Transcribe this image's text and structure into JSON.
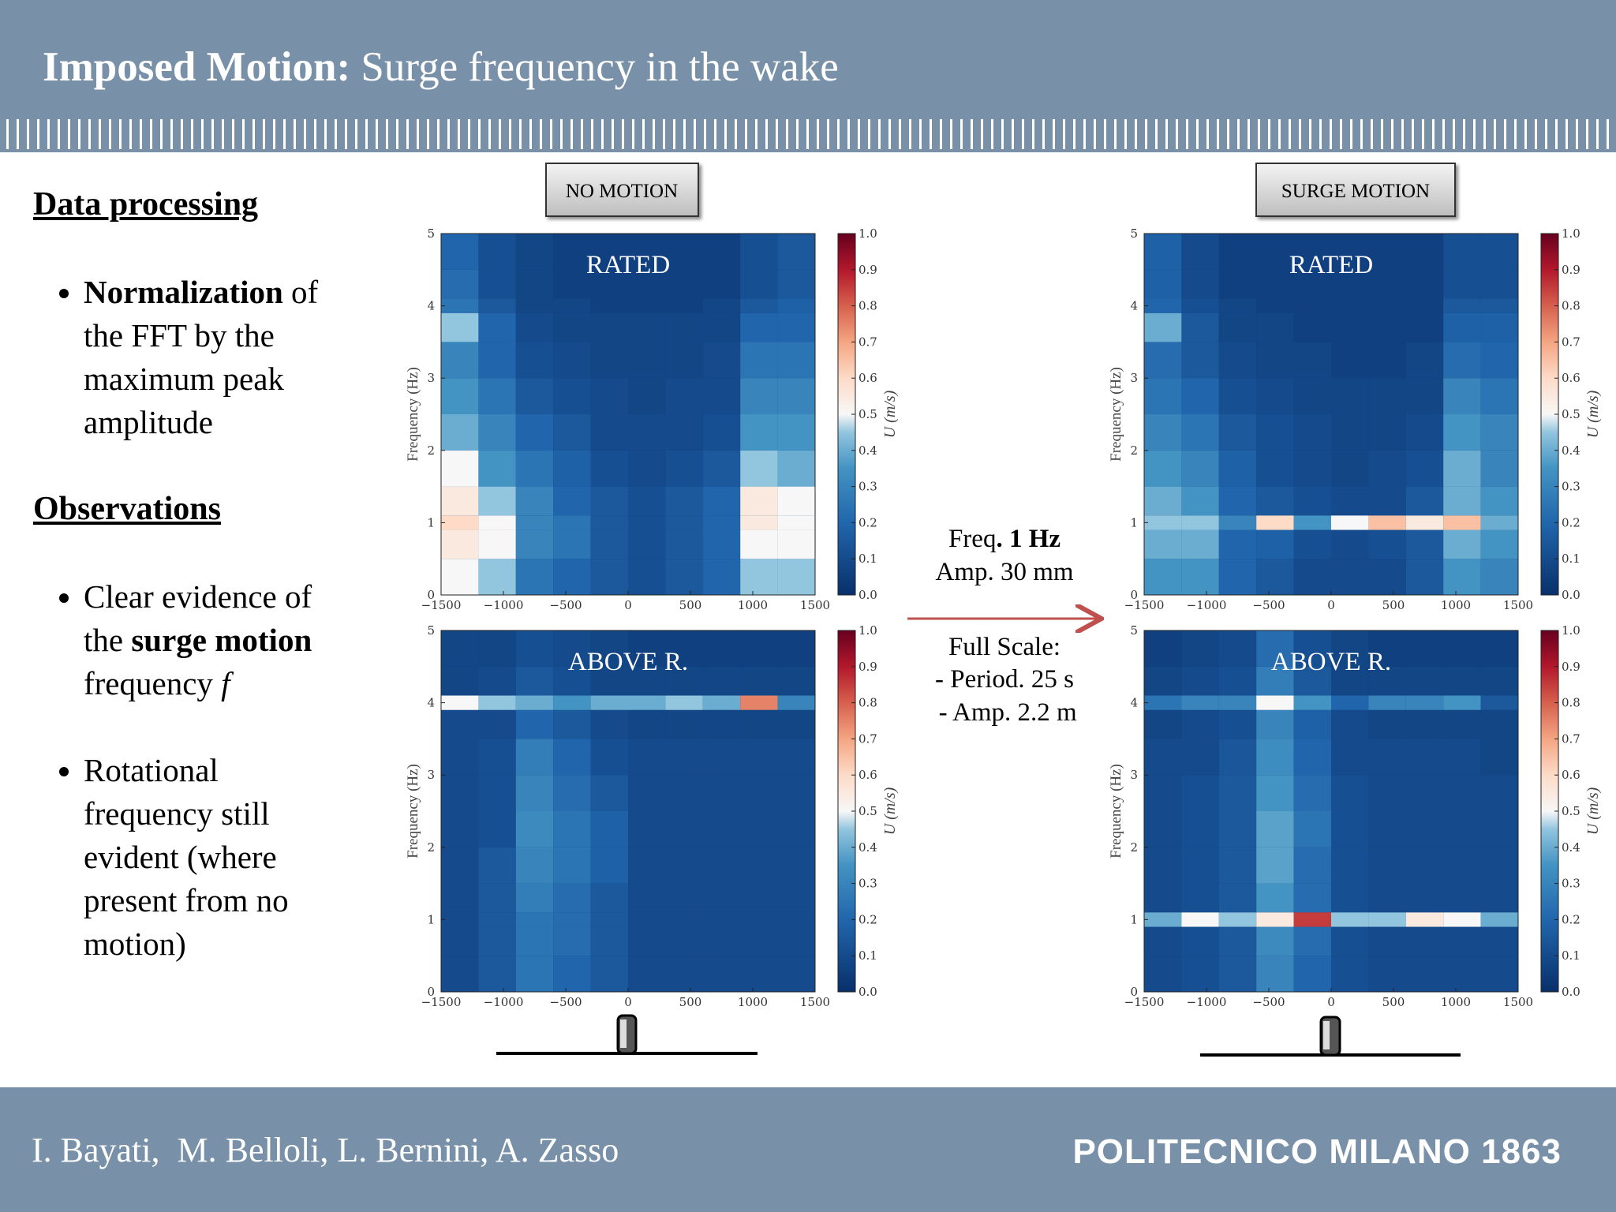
{
  "header": {
    "title": [
      {
        "text": "Imposed Motion:",
        "bold": true
      },
      {
        "text": " Surge frequency in the wake"
      }
    ]
  },
  "sidebar": [
    {
      "heading": "Data processing",
      "bullets": [
        [
          {
            "text": "Normalization",
            "bold": true
          },
          {
            "text": " of the FFT by the maximum peak amplitude"
          }
        ]
      ]
    },
    {
      "heading": "Observations",
      "bullets": [
        [
          {
            "text": "Clear evidence of the "
          },
          {
            "text": "surge motion",
            "bold": true
          },
          {
            "text": " frequency "
          },
          {
            "text": "f",
            "italic": true
          }
        ],
        [
          {
            "text": "Rotational frequency still evident (where present from no motion)"
          }
        ]
      ]
    }
  ],
  "column_labels": [
    "NO MOTION",
    "SURGE MOTION"
  ],
  "annotation": [
    [
      {
        "text": "Freq"
      },
      {
        "text": ". 1 Hz",
        "bold": true
      }
    ],
    [
      {
        "text": "Amp. 30 mm"
      }
    ],
    [
      {
        "text": "Full Scale:"
      }
    ],
    [
      {
        "text": "- Period. 25 s"
      }
    ],
    [
      {
        "text": " - Amp. 2.2 m"
      }
    ]
  ],
  "footer": {
    "authors": "I. Bayati,  M. Belloli, L. Bernini, A. Zasso",
    "logo": "POLITECNICO MILANO 1863"
  },
  "chart_data": [
    {
      "type": "heatmap",
      "title": "RATED",
      "ylabel": "Frequency (Hz)",
      "colorbar_label": "U (m/s)",
      "xlim": [
        -1500,
        1500
      ],
      "ylim": [
        0,
        5
      ],
      "clim": [
        0,
        1
      ],
      "xticks": [
        {
          "value": -1500,
          "label": "−1500"
        },
        {
          "value": -1000,
          "label": "−1000"
        },
        {
          "value": -500,
          "label": "−500"
        },
        0,
        500,
        1000,
        1500
      ],
      "yticks": [
        0,
        1,
        2,
        3,
        4,
        5
      ],
      "cticks": [
        {
          "value": 0,
          "label": "0.0"
        },
        0.1,
        0.2,
        0.3,
        0.4,
        0.5,
        0.6,
        0.7,
        0.8,
        0.9,
        {
          "value": 1,
          "label": "1.0"
        }
      ],
      "xbins": [
        -1500,
        -1200,
        -900,
        -600,
        -300,
        0,
        300,
        600,
        900,
        1200,
        1500
      ],
      "ybins": [
        0,
        0.5,
        0.9,
        1.1,
        1.5,
        2,
        2.5,
        3,
        3.5,
        3.9,
        4.1,
        4.5,
        5
      ],
      "z": [
        [
          0.5,
          0.45,
          0.25,
          0.2,
          0.15,
          0.12,
          0.15,
          0.2,
          0.45,
          0.45
        ],
        [
          0.55,
          0.5,
          0.3,
          0.25,
          0.15,
          0.12,
          0.15,
          0.2,
          0.5,
          0.5
        ],
        [
          0.6,
          0.5,
          0.3,
          0.25,
          0.15,
          0.12,
          0.15,
          0.2,
          0.55,
          0.5
        ],
        [
          0.55,
          0.45,
          0.3,
          0.2,
          0.15,
          0.12,
          0.15,
          0.2,
          0.55,
          0.5
        ],
        [
          0.5,
          0.35,
          0.25,
          0.18,
          0.12,
          0.1,
          0.12,
          0.15,
          0.45,
          0.4
        ],
        [
          0.4,
          0.3,
          0.2,
          0.15,
          0.1,
          0.1,
          0.1,
          0.12,
          0.35,
          0.35
        ],
        [
          0.35,
          0.25,
          0.15,
          0.12,
          0.1,
          0.08,
          0.1,
          0.1,
          0.3,
          0.3
        ],
        [
          0.3,
          0.2,
          0.12,
          0.1,
          0.08,
          0.08,
          0.08,
          0.1,
          0.25,
          0.25
        ],
        [
          0.45,
          0.2,
          0.1,
          0.08,
          0.08,
          0.08,
          0.08,
          0.08,
          0.2,
          0.2
        ],
        [
          0.25,
          0.15,
          0.08,
          0.08,
          0.06,
          0.06,
          0.06,
          0.08,
          0.15,
          0.18
        ],
        [
          0.22,
          0.12,
          0.08,
          0.06,
          0.06,
          0.06,
          0.06,
          0.06,
          0.12,
          0.15
        ],
        [
          0.2,
          0.12,
          0.08,
          0.06,
          0.06,
          0.06,
          0.06,
          0.06,
          0.12,
          0.15
        ]
      ]
    },
    {
      "type": "heatmap",
      "title": "ABOVE R.",
      "ylabel": "Frequency (Hz)",
      "colorbar_label": "U (m/s)",
      "xlim": [
        -1500,
        1500
      ],
      "ylim": [
        0,
        5
      ],
      "clim": [
        0,
        1
      ],
      "xticks": [
        {
          "value": -1500,
          "label": "−1500"
        },
        {
          "value": -1000,
          "label": "−1000"
        },
        {
          "value": -500,
          "label": "−500"
        },
        0,
        500,
        1000,
        1500
      ],
      "yticks": [
        0,
        1,
        2,
        3,
        4,
        5
      ],
      "cticks": [
        {
          "value": 0,
          "label": "0.0"
        },
        0.1,
        0.2,
        0.3,
        0.4,
        0.5,
        0.6,
        0.7,
        0.8,
        0.9,
        {
          "value": 1,
          "label": "1.0"
        }
      ],
      "xbins": [
        -1500,
        -1200,
        -900,
        -600,
        -300,
        0,
        300,
        600,
        900,
        1200,
        1500
      ],
      "ybins": [
        0,
        0.5,
        0.9,
        1.1,
        1.5,
        2,
        2.5,
        3,
        3.5,
        3.9,
        4.1,
        4.5,
        5
      ],
      "z": [
        [
          0.1,
          0.15,
          0.25,
          0.2,
          0.15,
          0.1,
          0.1,
          0.1,
          0.1,
          0.1
        ],
        [
          0.1,
          0.15,
          0.25,
          0.22,
          0.15,
          0.1,
          0.1,
          0.1,
          0.1,
          0.1
        ],
        [
          0.1,
          0.15,
          0.25,
          0.22,
          0.15,
          0.1,
          0.1,
          0.1,
          0.1,
          0.1
        ],
        [
          0.1,
          0.15,
          0.28,
          0.22,
          0.15,
          0.1,
          0.1,
          0.1,
          0.1,
          0.1
        ],
        [
          0.1,
          0.15,
          0.3,
          0.25,
          0.18,
          0.1,
          0.1,
          0.1,
          0.1,
          0.1
        ],
        [
          0.1,
          0.12,
          0.32,
          0.25,
          0.18,
          0.1,
          0.1,
          0.1,
          0.1,
          0.1
        ],
        [
          0.1,
          0.12,
          0.3,
          0.22,
          0.15,
          0.1,
          0.1,
          0.1,
          0.1,
          0.1
        ],
        [
          0.1,
          0.12,
          0.28,
          0.2,
          0.12,
          0.1,
          0.1,
          0.1,
          0.1,
          0.1
        ],
        [
          0.1,
          0.1,
          0.2,
          0.15,
          0.1,
          0.08,
          0.08,
          0.08,
          0.08,
          0.08
        ],
        [
          0.5,
          0.45,
          0.4,
          0.35,
          0.4,
          0.4,
          0.45,
          0.4,
          0.75,
          0.3
        ],
        [
          0.08,
          0.1,
          0.15,
          0.12,
          0.08,
          0.08,
          0.08,
          0.08,
          0.08,
          0.08
        ],
        [
          0.08,
          0.08,
          0.12,
          0.1,
          0.08,
          0.06,
          0.06,
          0.06,
          0.06,
          0.06
        ]
      ]
    },
    {
      "type": "heatmap",
      "title": "RATED",
      "ylabel": "Frequency (Hz)",
      "colorbar_label": "U (m/s)",
      "xlim": [
        -1500,
        1500
      ],
      "ylim": [
        0,
        5
      ],
      "clim": [
        0,
        1
      ],
      "xticks": [
        {
          "value": -1500,
          "label": "−1500"
        },
        {
          "value": -1000,
          "label": "−1000"
        },
        {
          "value": -500,
          "label": "−500"
        },
        0,
        500,
        1000,
        1500
      ],
      "yticks": [
        0,
        1,
        2,
        3,
        4,
        5
      ],
      "cticks": [
        {
          "value": 0,
          "label": "0.0"
        },
        0.1,
        0.2,
        0.3,
        0.4,
        0.5,
        0.6,
        0.7,
        0.8,
        0.9,
        {
          "value": 1,
          "label": "1.0"
        }
      ],
      "xbins": [
        -1500,
        -1200,
        -900,
        -600,
        -300,
        0,
        300,
        600,
        900,
        1200,
        1500
      ],
      "ybins": [
        0,
        0.5,
        0.9,
        1.1,
        1.5,
        2,
        2.5,
        3,
        3.5,
        3.9,
        4.1,
        4.5,
        5
      ],
      "z": [
        [
          0.35,
          0.35,
          0.2,
          0.15,
          0.1,
          0.1,
          0.1,
          0.15,
          0.35,
          0.3
        ],
        [
          0.4,
          0.4,
          0.2,
          0.18,
          0.12,
          0.1,
          0.12,
          0.15,
          0.4,
          0.35
        ],
        [
          0.45,
          0.45,
          0.3,
          0.6,
          0.35,
          0.5,
          0.65,
          0.55,
          0.65,
          0.4
        ],
        [
          0.4,
          0.35,
          0.2,
          0.15,
          0.12,
          0.1,
          0.1,
          0.15,
          0.4,
          0.35
        ],
        [
          0.35,
          0.3,
          0.18,
          0.12,
          0.1,
          0.08,
          0.1,
          0.12,
          0.4,
          0.3
        ],
        [
          0.3,
          0.25,
          0.15,
          0.12,
          0.1,
          0.08,
          0.08,
          0.1,
          0.35,
          0.3
        ],
        [
          0.25,
          0.2,
          0.12,
          0.1,
          0.08,
          0.08,
          0.08,
          0.08,
          0.3,
          0.25
        ],
        [
          0.22,
          0.15,
          0.1,
          0.08,
          0.08,
          0.06,
          0.06,
          0.08,
          0.22,
          0.2
        ],
        [
          0.4,
          0.15,
          0.08,
          0.08,
          0.06,
          0.06,
          0.06,
          0.06,
          0.18,
          0.18
        ],
        [
          0.2,
          0.12,
          0.08,
          0.06,
          0.06,
          0.06,
          0.06,
          0.06,
          0.15,
          0.15
        ],
        [
          0.18,
          0.1,
          0.06,
          0.06,
          0.06,
          0.06,
          0.06,
          0.06,
          0.12,
          0.12
        ],
        [
          0.18,
          0.1,
          0.06,
          0.06,
          0.06,
          0.06,
          0.06,
          0.06,
          0.12,
          0.12
        ]
      ]
    },
    {
      "type": "heatmap",
      "title": "ABOVE R.",
      "ylabel": "Frequency (Hz)",
      "colorbar_label": "U (m/s)",
      "xlim": [
        -1500,
        1500
      ],
      "ylim": [
        0,
        5
      ],
      "clim": [
        0,
        1
      ],
      "xticks": [
        {
          "value": -1500,
          "label": "−1500"
        },
        {
          "value": -1000,
          "label": "−1000"
        },
        {
          "value": -500,
          "label": "−500"
        },
        0,
        500,
        1000,
        1500
      ],
      "yticks": [
        0,
        1,
        2,
        3,
        4,
        5
      ],
      "cticks": [
        {
          "value": 0,
          "label": "0.0"
        },
        0.1,
        0.2,
        0.3,
        0.4,
        0.5,
        0.6,
        0.7,
        0.8,
        0.9,
        {
          "value": 1,
          "label": "1.0"
        }
      ],
      "xbins": [
        -1500,
        -1200,
        -900,
        -600,
        -300,
        0,
        300,
        600,
        900,
        1200,
        1500
      ],
      "ybins": [
        0,
        0.5,
        0.9,
        1.1,
        1.5,
        2,
        2.5,
        3,
        3.5,
        3.9,
        4.1,
        4.5,
        5
      ],
      "z": [
        [
          0.1,
          0.12,
          0.15,
          0.3,
          0.2,
          0.12,
          0.1,
          0.1,
          0.1,
          0.1
        ],
        [
          0.1,
          0.12,
          0.15,
          0.32,
          0.22,
          0.12,
          0.1,
          0.1,
          0.1,
          0.1
        ],
        [
          0.4,
          0.5,
          0.45,
          0.55,
          0.85,
          0.45,
          0.45,
          0.55,
          0.5,
          0.4
        ],
        [
          0.1,
          0.12,
          0.15,
          0.35,
          0.22,
          0.12,
          0.1,
          0.1,
          0.1,
          0.1
        ],
        [
          0.1,
          0.12,
          0.15,
          0.38,
          0.22,
          0.12,
          0.1,
          0.1,
          0.1,
          0.1
        ],
        [
          0.1,
          0.12,
          0.15,
          0.38,
          0.25,
          0.12,
          0.1,
          0.1,
          0.1,
          0.1
        ],
        [
          0.1,
          0.12,
          0.15,
          0.35,
          0.22,
          0.12,
          0.1,
          0.1,
          0.1,
          0.1
        ],
        [
          0.1,
          0.1,
          0.14,
          0.33,
          0.2,
          0.1,
          0.1,
          0.1,
          0.1,
          0.08
        ],
        [
          0.08,
          0.1,
          0.12,
          0.3,
          0.18,
          0.1,
          0.08,
          0.08,
          0.08,
          0.08
        ],
        [
          0.25,
          0.3,
          0.3,
          0.5,
          0.35,
          0.2,
          0.3,
          0.3,
          0.35,
          0.15
        ],
        [
          0.08,
          0.1,
          0.12,
          0.28,
          0.15,
          0.08,
          0.08,
          0.08,
          0.08,
          0.08
        ],
        [
          0.06,
          0.08,
          0.1,
          0.22,
          0.12,
          0.08,
          0.06,
          0.06,
          0.06,
          0.06
        ]
      ]
    }
  ]
}
